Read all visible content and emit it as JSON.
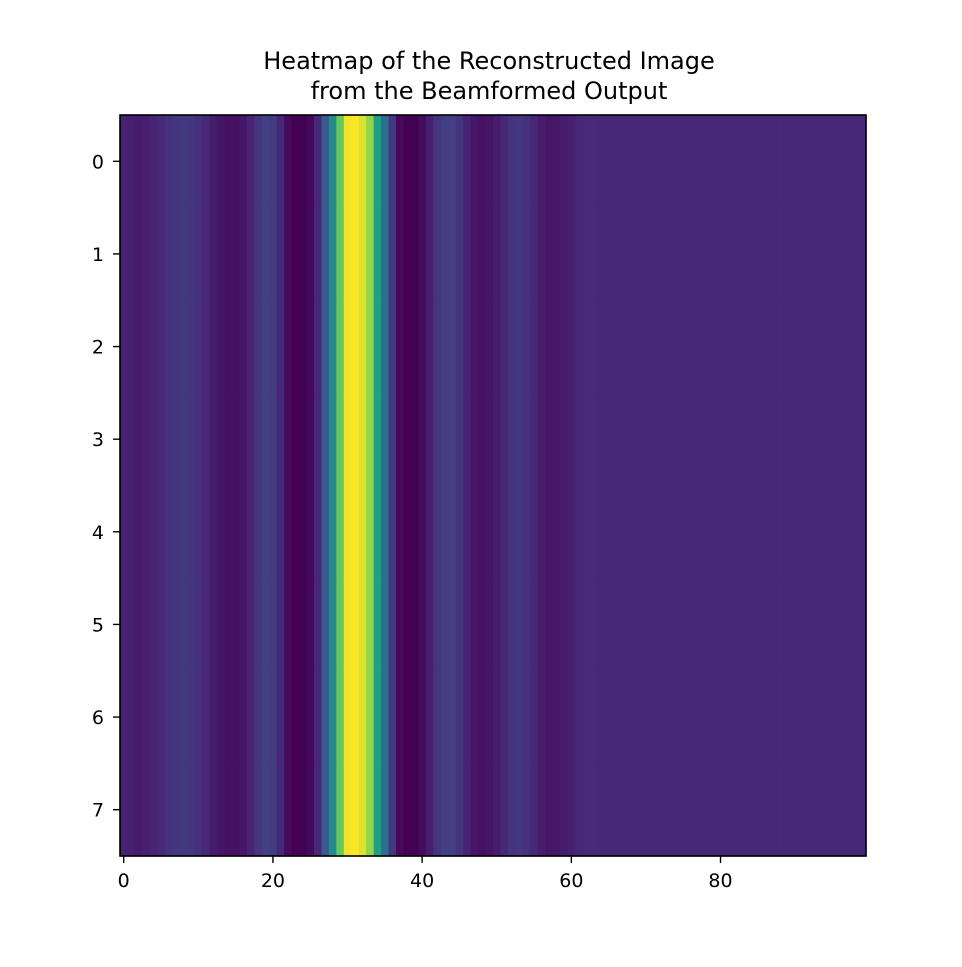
{
  "chart_data": {
    "type": "heatmap",
    "title_lines": [
      "Heatmap of the Reconstructed Image",
      "from the Beamformed Output"
    ],
    "xlabel": "",
    "ylabel": "",
    "colormap": "viridis",
    "rows": 8,
    "cols": 100,
    "xlim": [
      -0.5,
      99.5
    ],
    "ylim": [
      7.5,
      -0.5
    ],
    "x_ticks": [
      0,
      20,
      40,
      60,
      80
    ],
    "y_ticks": [
      0,
      1,
      2,
      3,
      4,
      5,
      6,
      7
    ],
    "column_values": [
      0.12,
      0.11,
      0.1,
      0.11,
      0.13,
      0.15,
      0.18,
      0.2,
      0.21,
      0.2,
      0.18,
      0.15,
      0.1,
      0.08,
      0.06,
      0.06,
      0.08,
      0.13,
      0.19,
      0.23,
      0.22,
      0.14,
      0.04,
      0.0,
      0.0,
      0.03,
      0.14,
      0.36,
      0.6,
      0.85,
      0.99,
      1.0,
      0.97,
      0.9,
      0.7,
      0.45,
      0.2,
      0.03,
      0.0,
      0.0,
      0.04,
      0.11,
      0.19,
      0.23,
      0.23,
      0.19,
      0.13,
      0.08,
      0.06,
      0.07,
      0.1,
      0.15,
      0.19,
      0.2,
      0.18,
      0.14,
      0.1,
      0.08,
      0.08,
      0.1,
      0.12,
      0.14,
      0.15,
      0.15,
      0.14,
      0.14,
      0.14,
      0.14,
      0.14,
      0.14,
      0.14,
      0.14,
      0.14,
      0.14,
      0.14,
      0.14,
      0.14,
      0.14,
      0.14,
      0.14,
      0.14,
      0.14,
      0.14,
      0.14,
      0.14,
      0.14,
      0.14,
      0.14,
      0.14,
      0.14,
      0.14,
      0.14,
      0.14,
      0.14,
      0.14,
      0.14,
      0.14,
      0.14,
      0.14,
      0.14
    ],
    "grid": false,
    "colorbar": false
  }
}
